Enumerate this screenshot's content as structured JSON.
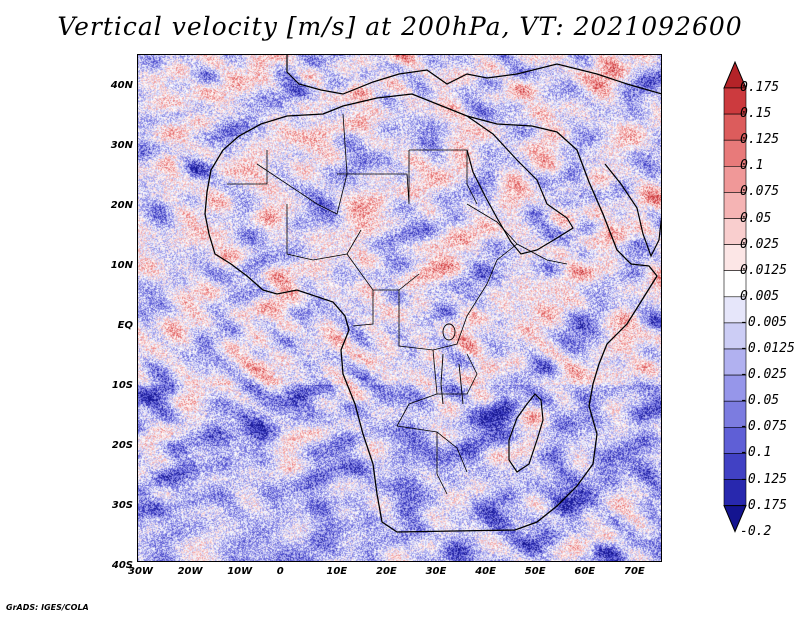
{
  "title": "Vertical velocity [m/s] at 200hPa, VT: 2021092600",
  "map": {
    "region": "Africa and surrounding oceans",
    "lat_labels": [
      "40N",
      "30N",
      "20N",
      "10N",
      "EQ",
      "10S",
      "20S",
      "30S",
      "40S"
    ],
    "lon_labels": [
      "30W",
      "20W",
      "10W",
      "0",
      "10E",
      "20E",
      "30E",
      "40E",
      "50E",
      "60E",
      "70E"
    ],
    "lat_range": [
      -40,
      45
    ],
    "lon_range": [
      -30,
      76
    ]
  },
  "colorbar": {
    "labels": [
      "0.175",
      "0.15",
      "0.125",
      "0.1",
      "0.075",
      "0.05",
      "0.025",
      "0.0125",
      "0.005",
      "-0.005",
      "-0.0125",
      "-0.025",
      "-0.05",
      "-0.075",
      "-0.1",
      "-0.125",
      "-0.175",
      "-0.2"
    ],
    "colors": [
      "#b42328",
      "#cc3a3e",
      "#dc5c5c",
      "#e87a7a",
      "#f09898",
      "#f5b4b4",
      "#f9cece",
      "#fce6e6",
      "#ffffff",
      "#e6e6fa",
      "#cccdf5",
      "#b1b1f0",
      "#9696ea",
      "#7c7ce0",
      "#5f5fd6",
      "#4141c4",
      "#2828ae",
      "#141490"
    ]
  },
  "credit": "GrADS: IGES/COLA"
}
